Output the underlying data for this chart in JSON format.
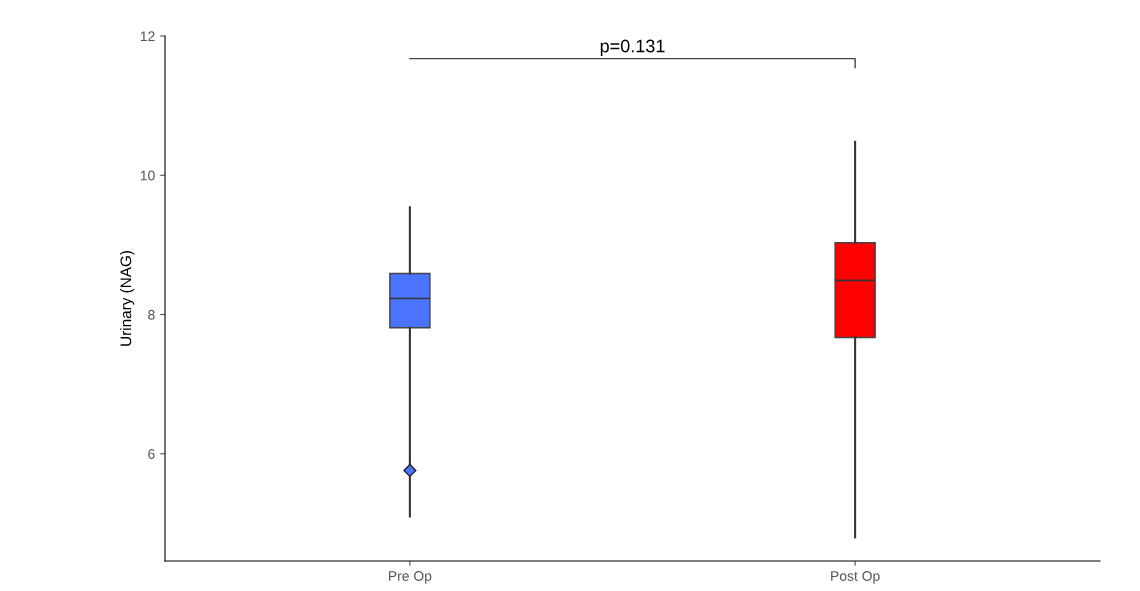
{
  "chart_data": {
    "type": "box",
    "ylabel": "Urinary (NAG)",
    "categories": [
      "Pre Op",
      "Post Op"
    ],
    "boxes": [
      {
        "low": 5.1,
        "q1": 7.81,
        "median": 8.23,
        "q3": 8.59,
        "high": 9.54,
        "outliers": [
          5.76
        ]
      },
      {
        "low": 4.8,
        "q1": 7.67,
        "median": 8.49,
        "q3": 9.03,
        "high": 10.48
      }
    ],
    "colors": [
      "#4a74ff",
      "#ff0000"
    ],
    "ylim": [
      4.46,
      12
    ],
    "yticks": [
      6,
      8,
      10,
      12
    ],
    "grid": false,
    "annotations": [
      "p=0.131"
    ]
  }
}
